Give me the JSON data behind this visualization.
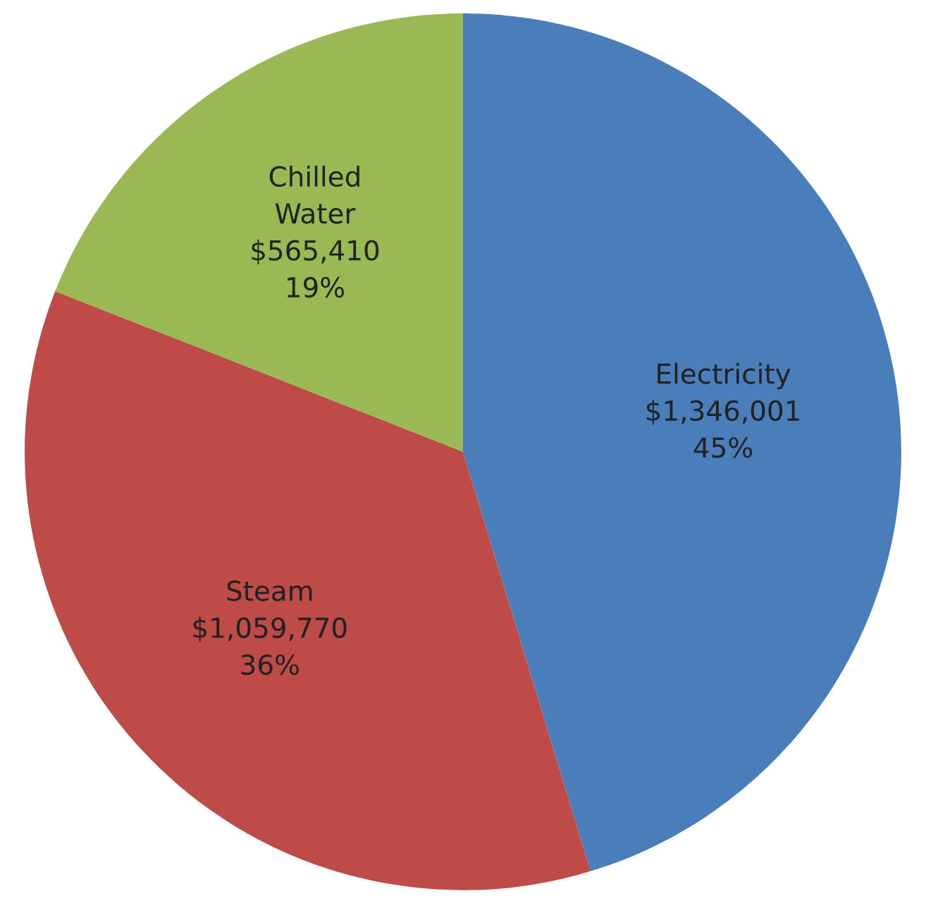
{
  "chart_data": {
    "type": "pie",
    "categories": [
      "Electricity",
      "Steam",
      "Chilled Water"
    ],
    "values": [
      1346001,
      1059770,
      565410
    ],
    "colors": [
      "#4a7ebb",
      "#be4b48",
      "#98b954"
    ],
    "value_labels": [
      "$1,346,001\n45%",
      "$1,059,770\n36%",
      "$565,410\n19%"
    ],
    "legend": false
  }
}
